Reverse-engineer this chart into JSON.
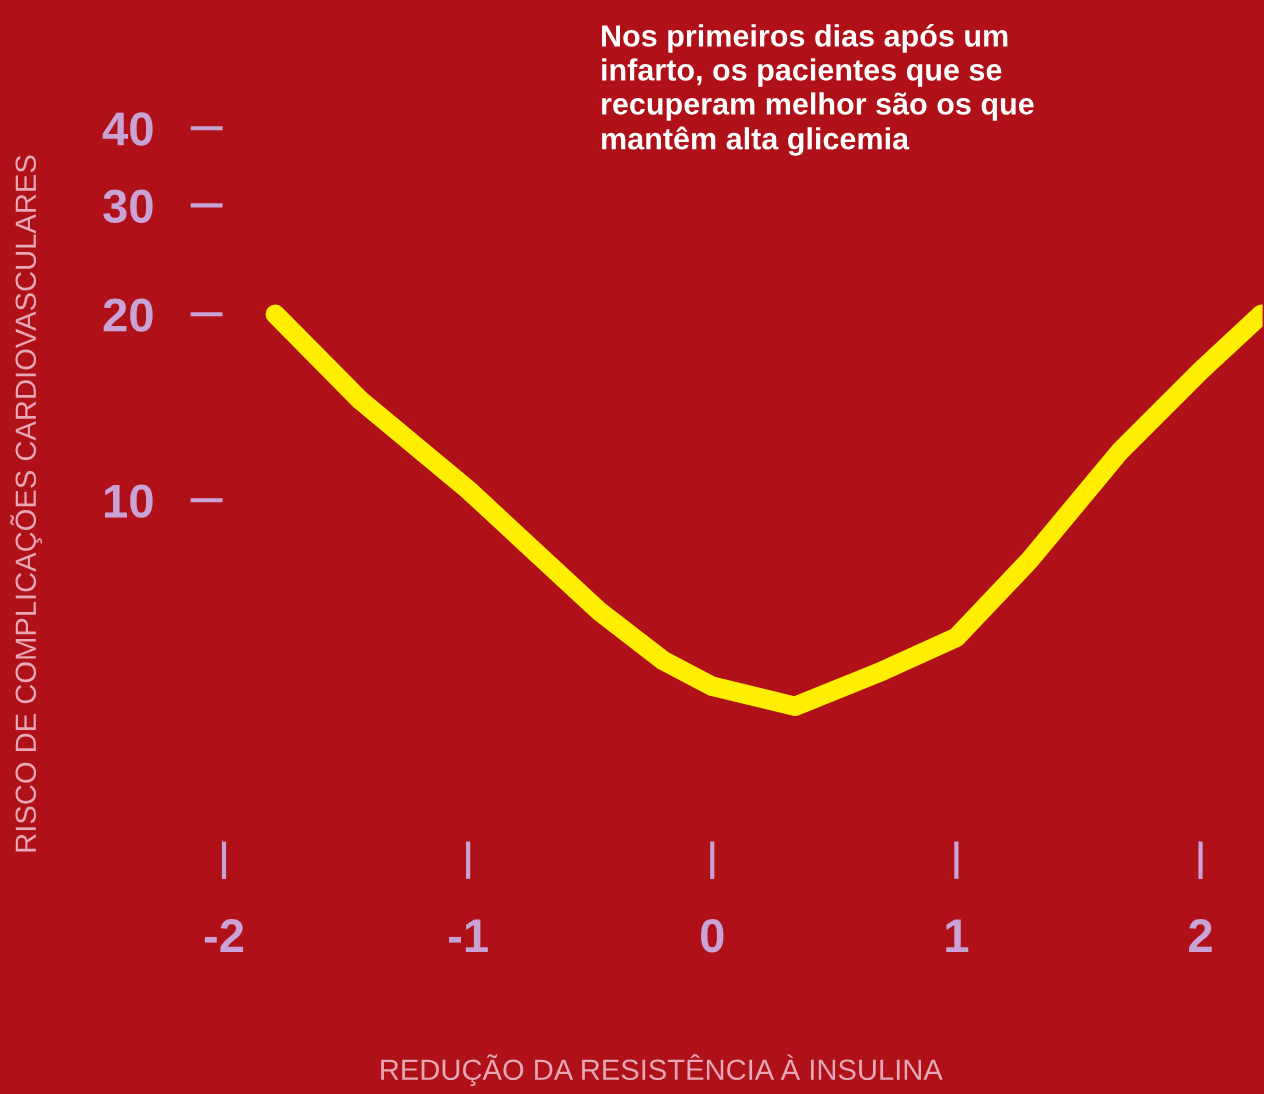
{
  "chart_data": {
    "type": "line",
    "xlabel": "REDUÇÃO DA RESISTÊNCIA À INSULINA",
    "ylabel": "RISCO DE COMPLICAÇÕES CARDIOVASCULARES",
    "annotations": [
      "Nos primeiros dias após um infarto, os pacientes que se recuperam melhor são os que mantêm alta glicemia"
    ],
    "series": [
      {
        "color": "#ffee00",
        "x": [
          -1.79,
          -1.44,
          -1,
          -0.46,
          -0.2,
          0,
          0.34,
          0.7,
          1,
          1.3,
          1.67,
          2,
          2.25
        ],
        "values": [
          20,
          14.5,
          10.4,
          6.6,
          5.5,
          5.0,
          4.64,
          5.3,
          6.0,
          8.0,
          12.0,
          16.2,
          20
        ]
      }
    ],
    "log": "y",
    "xlim": [
      -2,
      2.26
    ],
    "ylim": [
      2.82,
      64.5
    ],
    "xticks": [
      -2,
      -1,
      0,
      1,
      2
    ],
    "yticks": [
      10,
      20,
      30,
      40
    ],
    "grid": false,
    "legend": false,
    "marker": "none",
    "line_style": "solid"
  }
}
